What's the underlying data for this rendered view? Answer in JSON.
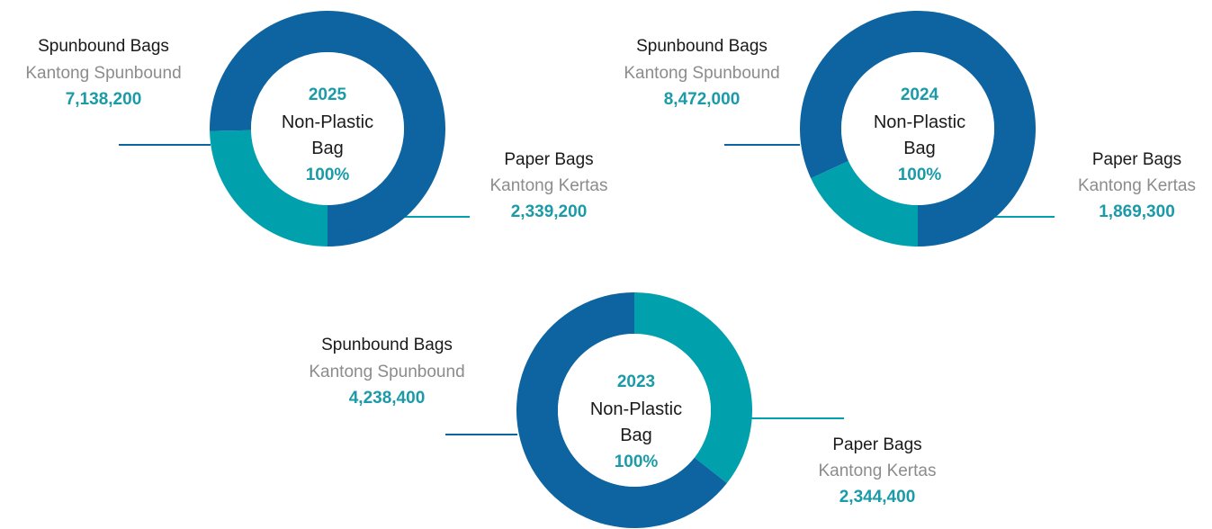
{
  "chart_data": [
    {
      "type": "pie",
      "year": "2025",
      "center_title": "Non-Plastic",
      "center_subtitle": "Bag",
      "center_percent": "100%",
      "series": [
        {
          "name_en": "Spunbound Bags",
          "name_id": "Kantong Spunbound",
          "value": 7138200,
          "label": "7,138,200",
          "color": "#0e64a0"
        },
        {
          "name_en": "Paper Bags",
          "name_id": "Kantong Kertas",
          "value": 2339200,
          "label": "2,339,200",
          "color": "#00a0ad"
        }
      ]
    },
    {
      "type": "pie",
      "year": "2024",
      "center_title": "Non-Plastic",
      "center_subtitle": "Bag",
      "center_percent": "100%",
      "series": [
        {
          "name_en": "Spunbound Bags",
          "name_id": "Kantong Spunbound",
          "value": 8472000,
          "label": "8,472,000",
          "color": "#0e64a0"
        },
        {
          "name_en": "Paper Bags",
          "name_id": "Kantong Kertas",
          "value": 1869300,
          "label": "1,869,300",
          "color": "#00a0ad"
        }
      ]
    },
    {
      "type": "pie",
      "year": "2023",
      "center_title": "Non-Plastic",
      "center_subtitle": "Bag",
      "center_percent": "100%",
      "series": [
        {
          "name_en": "Spunbound Bags",
          "name_id": "Kantong Spunbound",
          "value": 4238400,
          "label": "4,238,400",
          "color": "#0e64a0"
        },
        {
          "name_en": "Paper Bags",
          "name_id": "Kantong Kertas",
          "value": 2344400,
          "label": "2,344,400",
          "color": "#00a0ad"
        }
      ]
    }
  ]
}
